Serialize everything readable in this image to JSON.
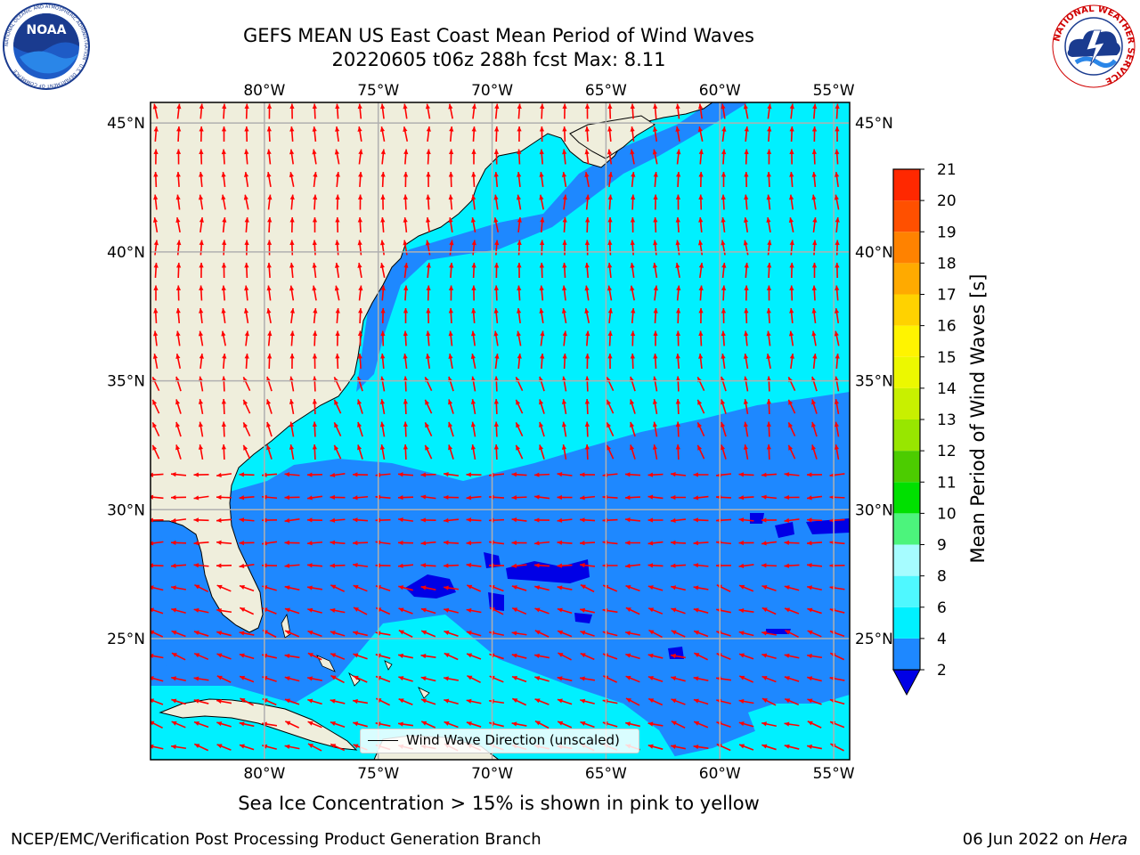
{
  "header": {
    "title_line1": "GEFS MEAN US East Coast Mean Period of Wind Waves",
    "title_line2": "20220605 t06z 288h fcst   Max: 8.11"
  },
  "logos": {
    "left": {
      "name": "noaa-logo",
      "text": "NOAA",
      "ring_text": "NATIONAL OCEANIC AND ATMOSPHERIC ADMINISTRATION · U.S. DEPARTMENT OF COMMERCE"
    },
    "right": {
      "name": "nws-logo",
      "ring_text": "NATIONAL WEATHER SERVICE"
    }
  },
  "map": {
    "lon_labels": [
      "80°W",
      "75°W",
      "70°W",
      "65°W",
      "60°W",
      "55°W"
    ],
    "lat_labels": [
      "45°N",
      "40°N",
      "35°N",
      "30°N",
      "25°N"
    ],
    "extent": {
      "lon_min": -85,
      "lon_max": -54.3,
      "lat_min": 20.3,
      "lat_max": 45.8
    },
    "colors": {
      "land": "#efeedc",
      "band_2_4": "#1e88ff",
      "band_4_6": "#00f0ff",
      "below_2": "#0000e6",
      "arrow": "#ff0000",
      "grid": "#b0b0b0"
    },
    "legend_label": "Wind Wave Direction (unscaled)"
  },
  "colorbar": {
    "label": "Mean Period of Wind Waves [s]",
    "ticks": [
      "2",
      "4",
      "6",
      "8",
      "9",
      "10",
      "11",
      "12",
      "13",
      "14",
      "15",
      "16",
      "17",
      "18",
      "19",
      "20",
      "21"
    ],
    "colors": [
      "#1e88ff",
      "#00f0ff",
      "#4ff8ff",
      "#a6fcff",
      "#4cf47c",
      "#00e000",
      "#4ccc00",
      "#98e600",
      "#c8f000",
      "#ecf800",
      "#fff400",
      "#ffd200",
      "#ffaa00",
      "#ff8200",
      "#ff5000",
      "#ff2800",
      "#ff0000"
    ],
    "extend_color": "#0000e6"
  },
  "footer": {
    "ice_note": "Sea Ice Concentration > 15% is shown in pink to yellow",
    "branch": "NCEP/EMC/Verification Post Processing Product Generation Branch",
    "date": "06 Jun 2022 on",
    "machine": "Hera"
  }
}
